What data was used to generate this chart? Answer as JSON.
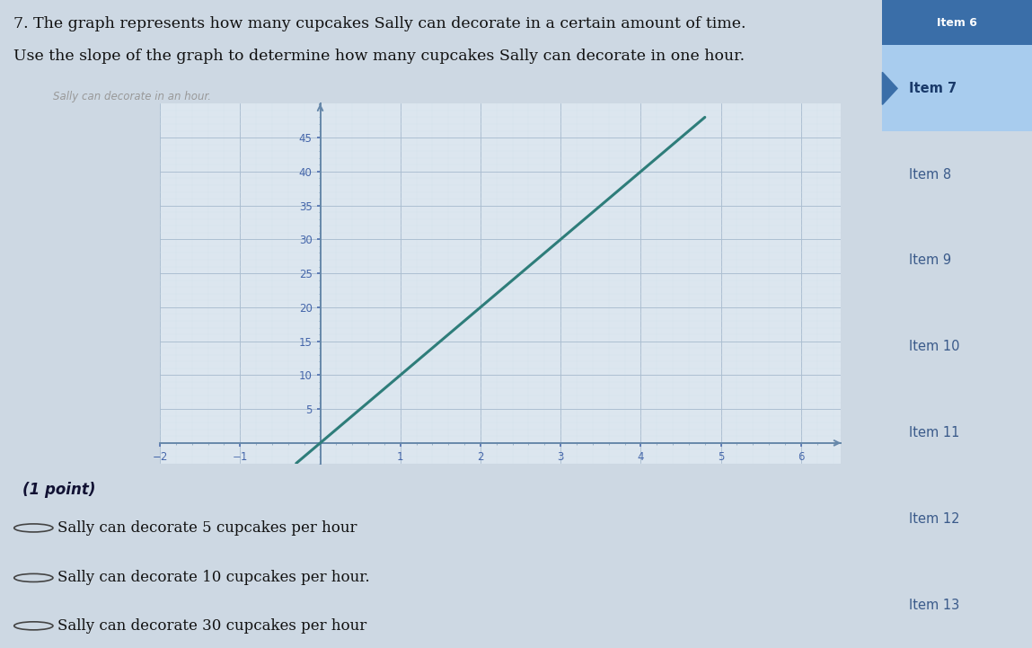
{
  "title_line1": "7. The graph represents how many cupcakes Sally can decorate in a certain amount of time.",
  "title_line2": "Use the slope of the graph to determine how many cupcakes Sally can decorate in one hour.",
  "subtitle_faint": "Sally can decorate in an hour.",
  "xmin": -2,
  "xmax": 6.5,
  "ymin": -3,
  "ymax": 50,
  "slope": 10,
  "intercept": 0,
  "line_color": "#2e7d7a",
  "line_x_start": -0.3,
  "line_x_end": 4.8,
  "grid_major_color": "#aabdd0",
  "grid_minor_color": "#d4e2ec",
  "bg_color": "#dce6ef",
  "graph_bg": "#dce6ef",
  "axis_color": "#6688aa",
  "tick_label_color": "#4466aa",
  "sidebar_bg": "#ffffff",
  "sidebar_active_bg": "#a8ccee",
  "sidebar_active_text": "#1a3a6a",
  "sidebar_inactive_text": "#3a5a8a",
  "sidebar_items": [
    "Item 7",
    "Item 8",
    "Item 9",
    "Item 10",
    "Item 11",
    "Item 12",
    "Item 13"
  ],
  "sidebar_active_index": 0,
  "answer_line1": "Sally can decorate 5 cupcakes per hour",
  "answer_line2": "Sally can decorate 10 cupcakes per hour.",
  "answer_line3": "Sally can decorate 30 cupcakes per hour",
  "question_number": "(1 point)",
  "main_bg": "#cdd8e3",
  "content_bg": "#d8e2ea"
}
